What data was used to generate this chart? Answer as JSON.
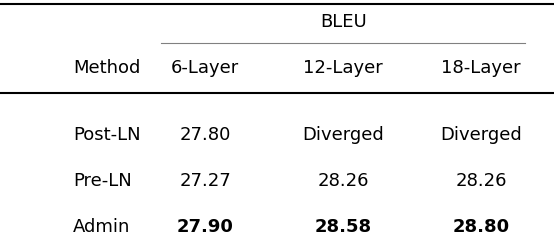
{
  "col_header_top": "BLEU",
  "col_header_row": [
    "Method",
    "6-Layer",
    "12-Layer",
    "18-Layer"
  ],
  "rows": [
    [
      "Post-LN",
      "27.80",
      "Diverged",
      "Diverged"
    ],
    [
      "Pre-LN",
      "27.27",
      "28.26",
      "28.26"
    ],
    [
      "Admin",
      "27.90",
      "28.58",
      "28.80"
    ]
  ],
  "bold_rows": [
    2
  ],
  "bold_cols_in_bold_rows": [
    1,
    2,
    3
  ],
  "bg_color": "#ffffff",
  "text_color": "#000000",
  "font_size": 13
}
